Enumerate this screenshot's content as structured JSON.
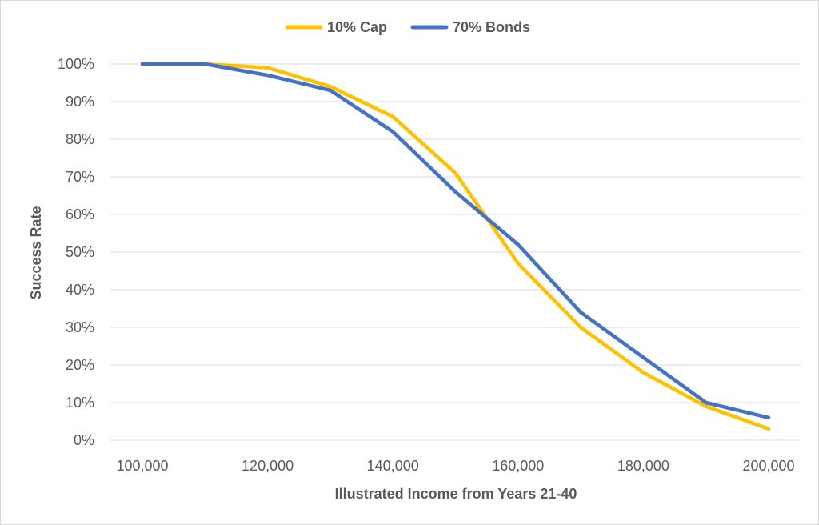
{
  "chart_data": {
    "type": "line",
    "xlabel": "Illustrated Income from Years 21-40",
    "ylabel": "Success Rate",
    "x": [
      100000,
      110000,
      120000,
      130000,
      140000,
      150000,
      160000,
      170000,
      180000,
      190000,
      200000
    ],
    "xlim": [
      100000,
      200000
    ],
    "ylim": [
      0,
      100
    ],
    "x_ticks": [
      100000,
      120000,
      140000,
      160000,
      180000,
      200000
    ],
    "x_tick_labels": [
      "100,000",
      "120,000",
      "140,000",
      "160,000",
      "180,000",
      "200,000"
    ],
    "y_ticks": [
      0,
      10,
      20,
      30,
      40,
      50,
      60,
      70,
      80,
      90,
      100
    ],
    "y_tick_labels": [
      "0%",
      "10%",
      "20%",
      "30%",
      "40%",
      "50%",
      "60%",
      "70%",
      "80%",
      "90%",
      "100%"
    ],
    "grid": true,
    "legend_position": "top",
    "series": [
      {
        "name": "10% Cap",
        "color": "#FFC000",
        "values": [
          100,
          100,
          99,
          94,
          86,
          71,
          47,
          30,
          18,
          9,
          3
        ]
      },
      {
        "name": "70% Bonds",
        "color": "#4472C4",
        "values": [
          100,
          100,
          97,
          93,
          82,
          66,
          52,
          34,
          22,
          10,
          6
        ]
      }
    ]
  }
}
